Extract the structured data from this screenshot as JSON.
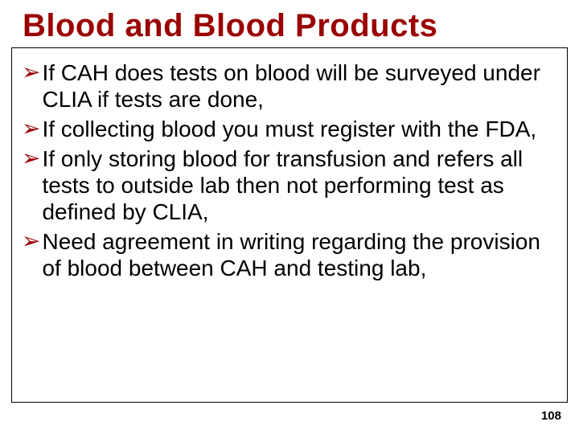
{
  "slide": {
    "title": "Blood and Blood Products",
    "title_color": "#9a0000",
    "title_fontsize": 40,
    "bullet_marker": "➢",
    "bullet_marker_color": "#9a0000",
    "bullet_marker_fontsize": 28,
    "body_fontsize": 28,
    "body_color": "#000000",
    "box_border_color": "#000000",
    "background_color": "#ffffff",
    "bullets": [
      "If CAH does tests on  blood will be surveyed under CLIA if tests are done,",
      "If collecting blood you must register with the FDA,",
      "If only storing blood for transfusion and refers all tests to outside lab then not performing test as defined by CLIA,",
      "Need agreement in writing regarding the provision of blood between CAH and testing lab,"
    ],
    "page_number": "108",
    "page_number_fontsize": 15
  }
}
